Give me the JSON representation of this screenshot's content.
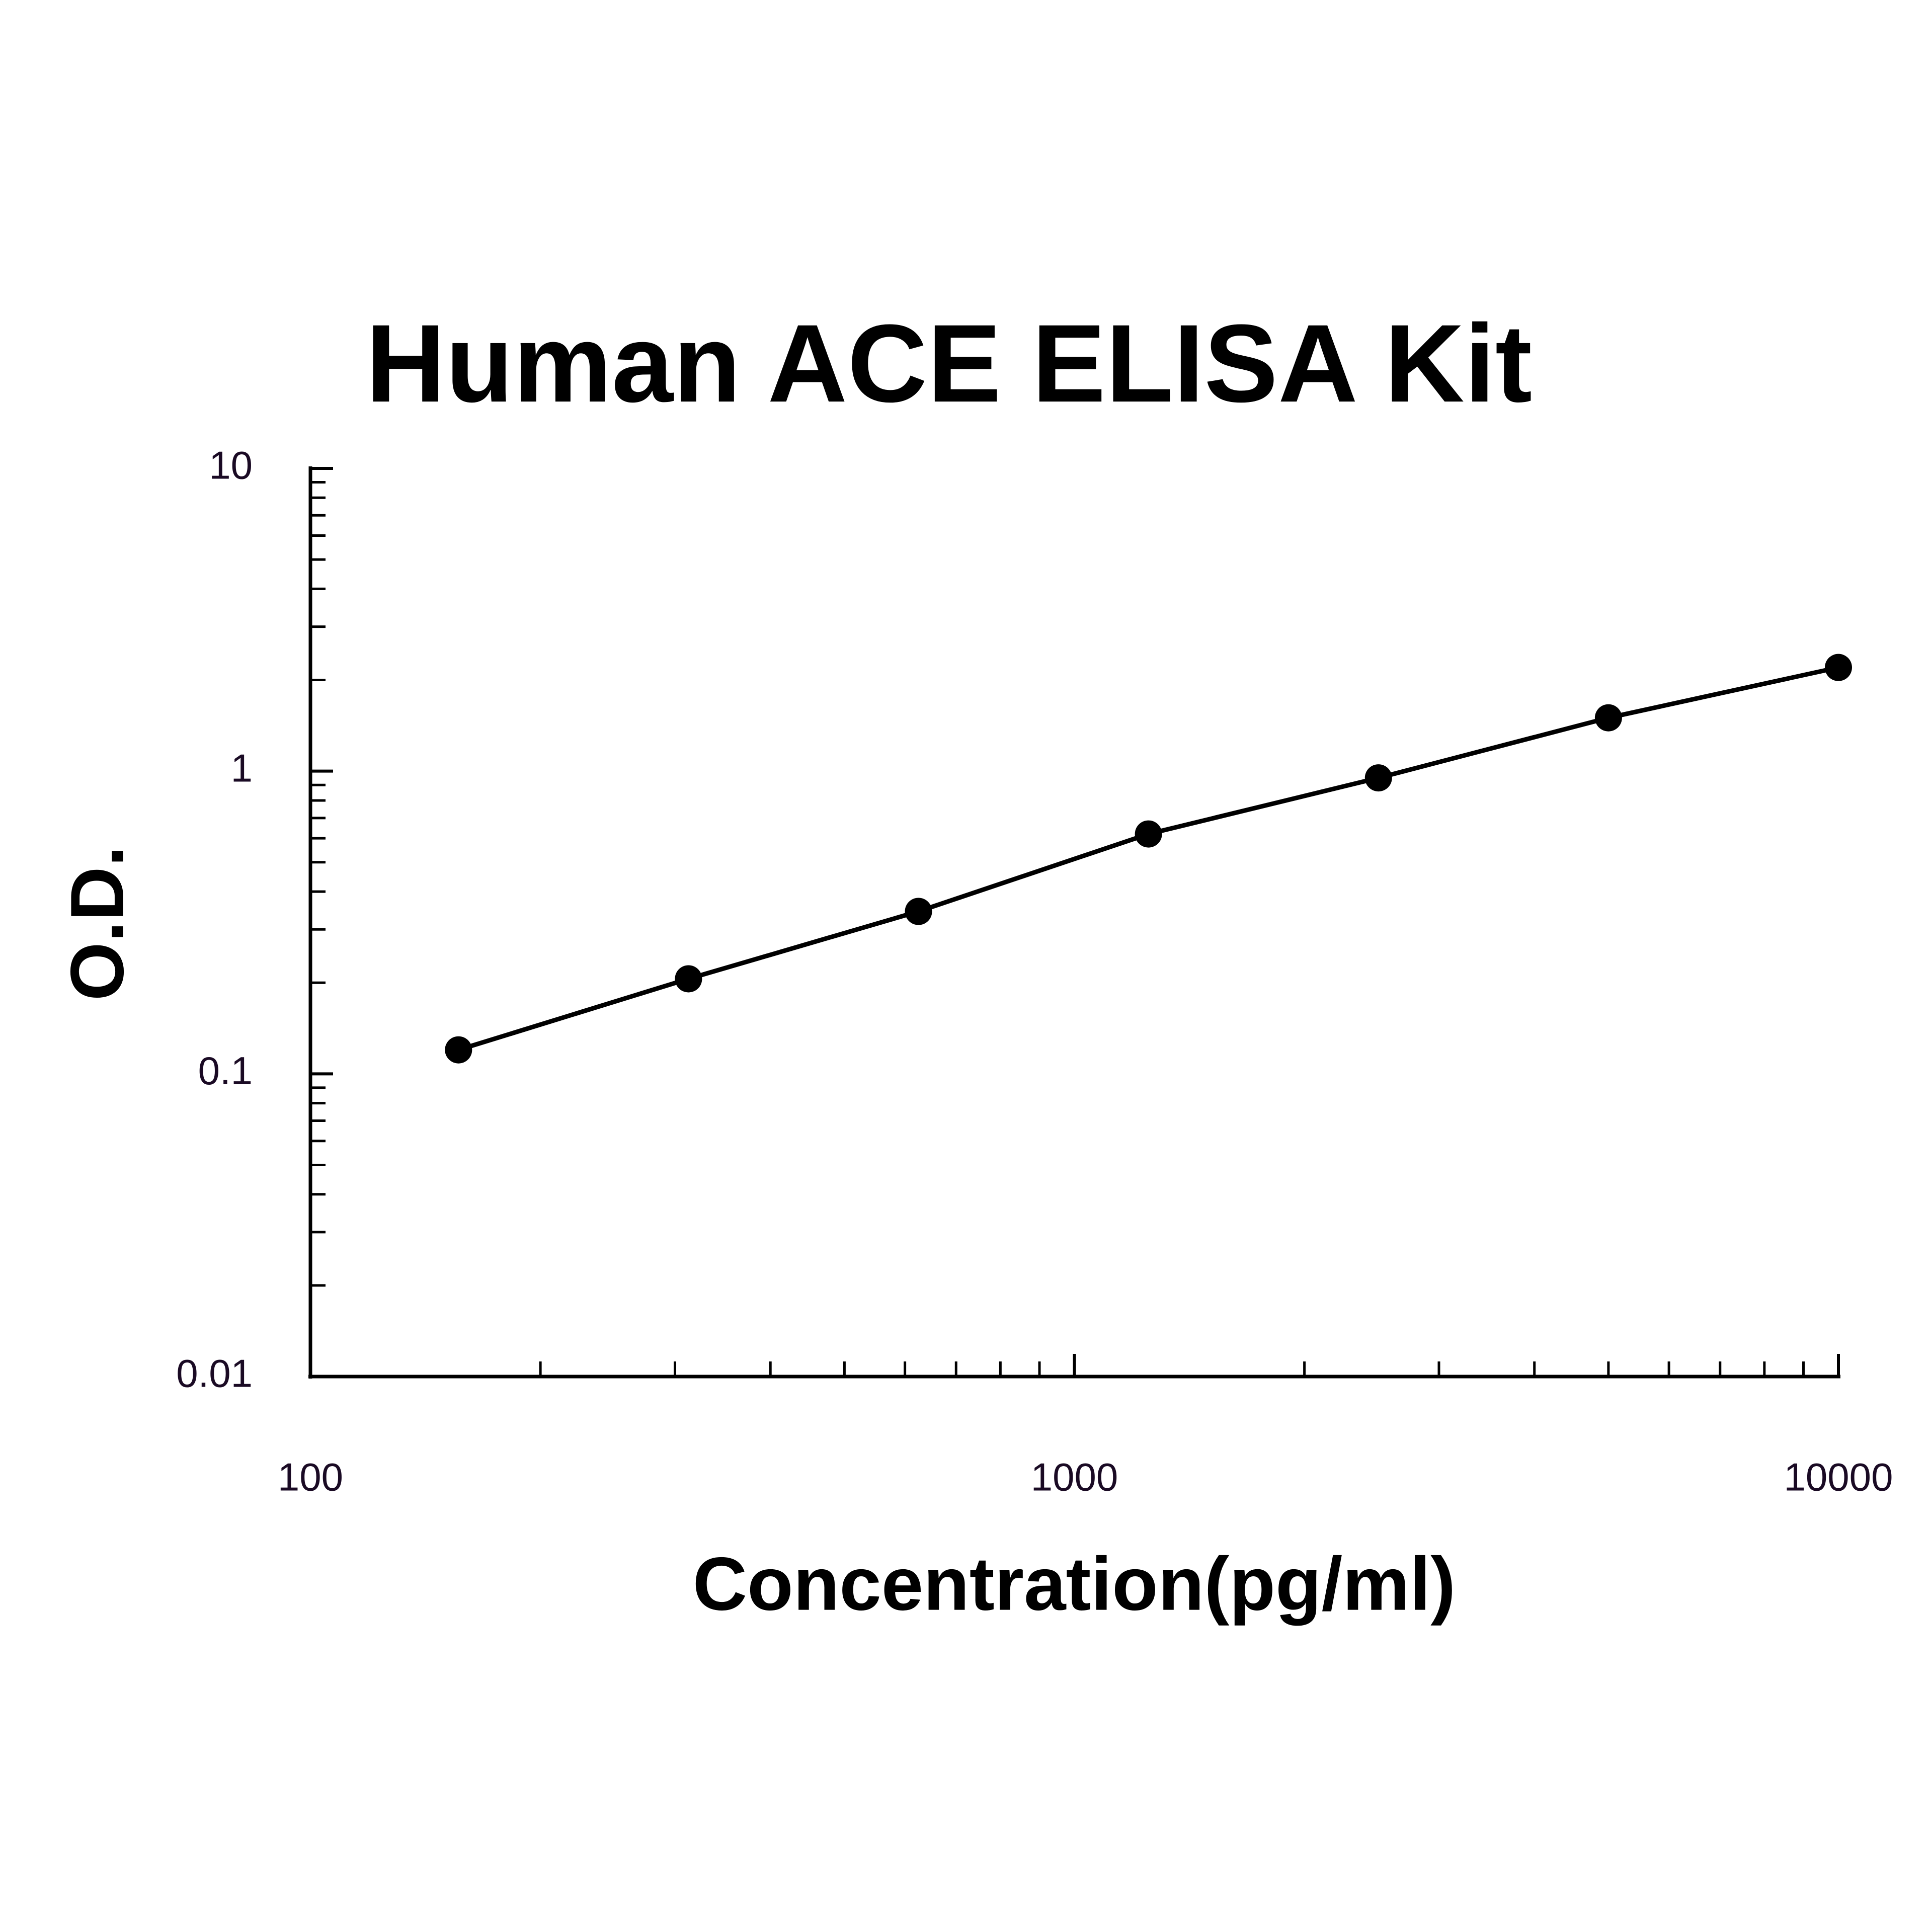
{
  "chart_data": {
    "type": "scatter",
    "title": "Human ACE ELISA Kit",
    "x_label": "Concentration(pg/ml)",
    "y_label": "O.D.",
    "x": [
      156.25,
      312.5,
      625,
      1250,
      2500,
      5000,
      10000
    ],
    "series": [
      {
        "color": "#000000",
        "values": [
          0.12,
          0.206,
          0.344,
          0.62,
          0.95,
          1.5,
          2.2
        ]
      }
    ],
    "xlim": [
      100,
      10000
    ],
    "ylim": [
      0.01,
      10
    ],
    "xticks": [
      100,
      1000,
      10000
    ],
    "yticks": [
      0.01,
      0.1,
      1,
      10
    ],
    "log_x": true,
    "log_y": true,
    "minor_ticks": true,
    "grid": false
  }
}
